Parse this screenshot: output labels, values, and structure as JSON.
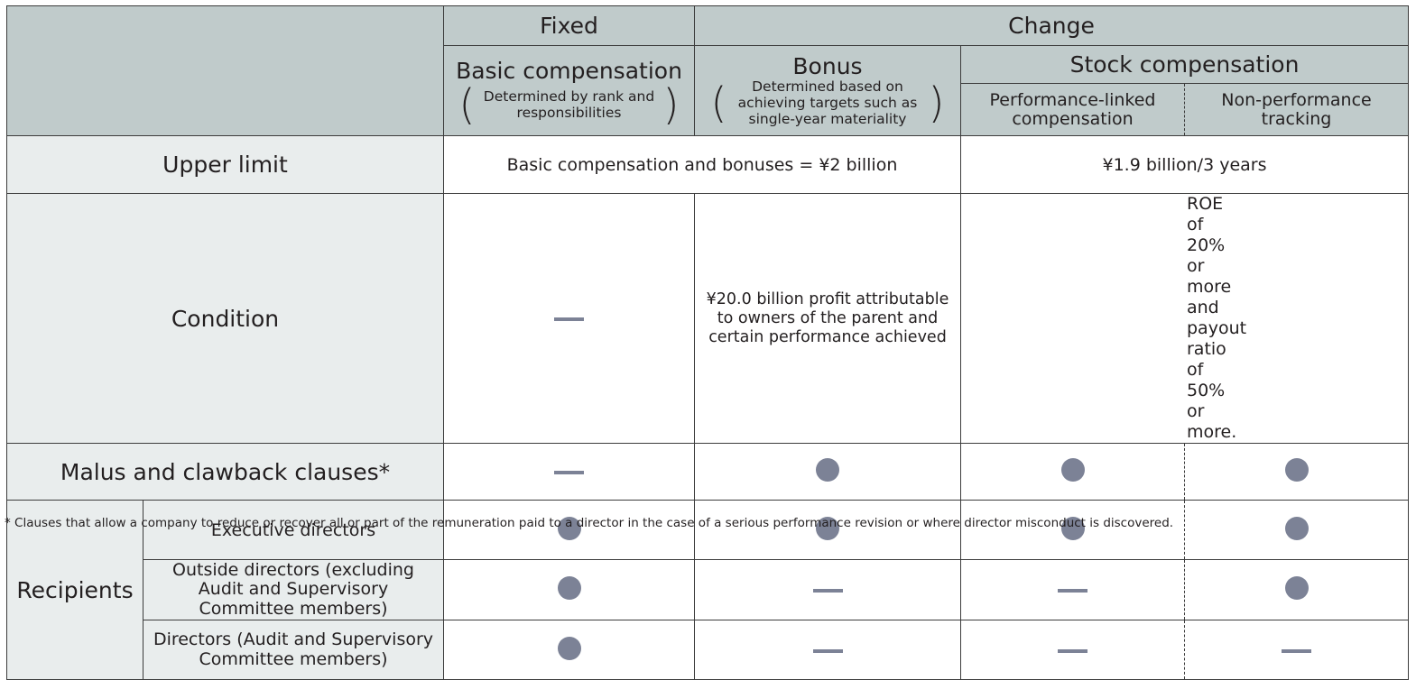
{
  "header": {
    "fixed": "Fixed",
    "change": "Change",
    "basic_compensation": "Basic compensation",
    "basic_note": "Determined by rank and responsibilities",
    "bonus": "Bonus",
    "bonus_note": "Determined based on achieving targets such as single-year materiality",
    "stock_compensation": "Stock compensation",
    "performance_linked": "Performance-linked compensation",
    "non_performance": "Non-performance tracking"
  },
  "rows": {
    "upper_limit": {
      "label": "Upper limit",
      "basic_and_bonus": "Basic compensation and bonuses = ¥2 billion",
      "stock": "¥1.9 billion/3 years"
    },
    "condition": {
      "label": "Condition",
      "bonus": "¥20.0 billion profit attributable to owners of the parent and certain performance achieved",
      "stock": "ROE of 20% or more and payout ratio of 50% or more."
    },
    "malus": {
      "label": "Malus and clawback clauses*"
    },
    "recipients": {
      "label": "Recipients",
      "executive": "Executive directors",
      "outside": "Outside directors (excluding Audit and Supervisory Committee members)",
      "audit": "Directors (Audit and Supervisory Committee members)"
    }
  },
  "legend": {
    "applies": "filled-circle",
    "not_applicable": "dash"
  },
  "colors": {
    "header_bg": "#c0cbcb",
    "label_bg": "#e9eded",
    "marker": "#7c8296"
  },
  "footnote": "* Clauses that allow a company to reduce or recover all or part of the remuneration paid to a director in the case of a serious performance revision or where director misconduct is discovered."
}
